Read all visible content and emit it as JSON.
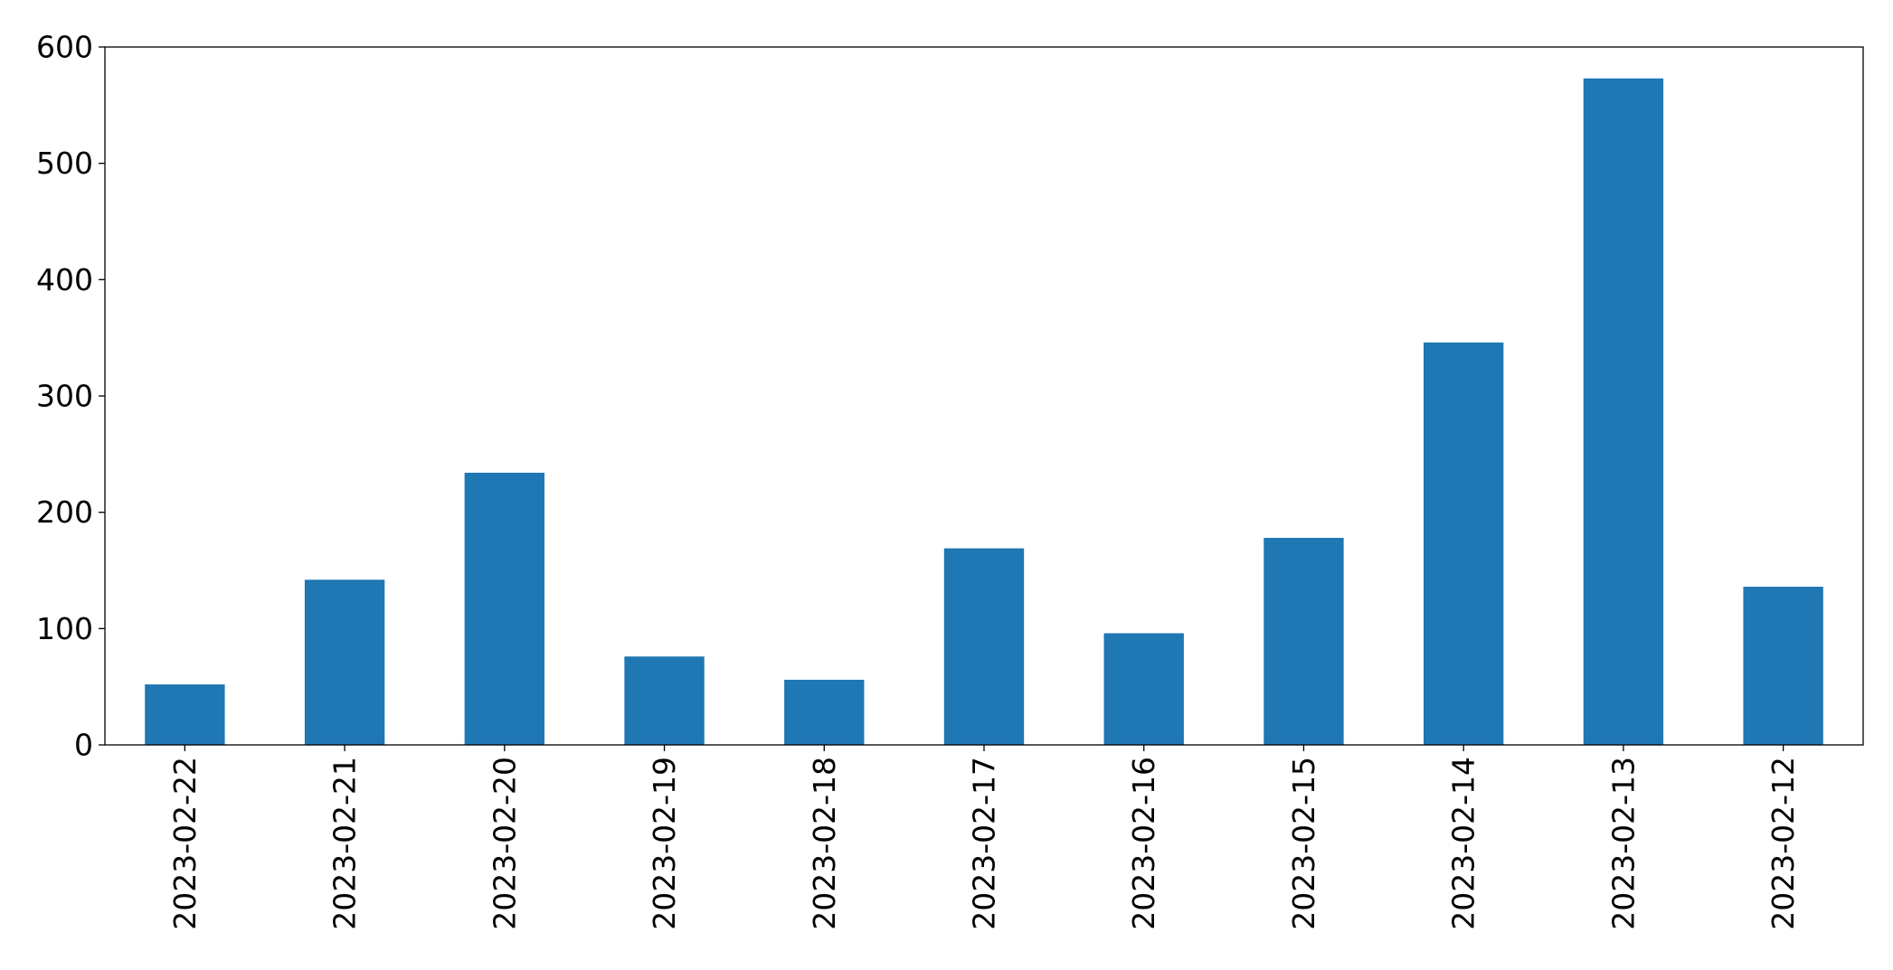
{
  "chart_data": {
    "type": "bar",
    "title": "",
    "xlabel": "",
    "ylabel": "",
    "categories": [
      "2023-02-22",
      "2023-02-21",
      "2023-02-20",
      "2023-02-19",
      "2023-02-18",
      "2023-02-17",
      "2023-02-16",
      "2023-02-15",
      "2023-02-14",
      "2023-02-13",
      "2023-02-12"
    ],
    "values": [
      52,
      142,
      234,
      76,
      56,
      169,
      96,
      178,
      346,
      573,
      136
    ],
    "ylim": [
      0,
      600
    ],
    "yticks": [
      0,
      100,
      200,
      300,
      400,
      500,
      600
    ],
    "grid": false,
    "legend": "none",
    "bar_color": "#1f77b4",
    "x_tick_rotation": "vertical"
  }
}
